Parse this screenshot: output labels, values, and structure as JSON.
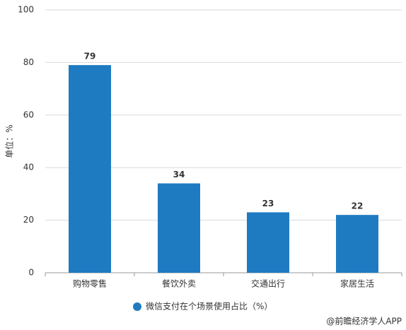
{
  "chart_data": {
    "type": "bar",
    "y_label": "单位：%",
    "categories": [
      "购物零售",
      "餐饮外卖",
      "交通出行",
      "家居生活"
    ],
    "series": [
      {
        "name": "微信支付在个场景使用占比（%）",
        "color": "#1f7bc1",
        "values": [
          79,
          34,
          23,
          22
        ]
      }
    ],
    "ylim": [
      0,
      100
    ],
    "yticks": [
      0,
      20,
      40,
      60,
      80,
      100
    ],
    "grid": true,
    "source": "@前瞻经济学人APP"
  }
}
